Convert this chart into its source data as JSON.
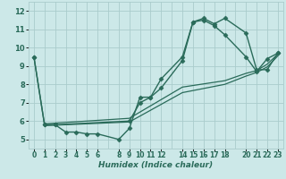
{
  "xlabel": "Humidex (Indice chaleur)",
  "ylabel": "",
  "bg_color": "#cce8e8",
  "grid_color": "#aacccc",
  "line_color": "#2a6b5a",
  "xlim": [
    -0.5,
    23.5
  ],
  "ylim": [
    4.5,
    12.5
  ],
  "xticks": [
    0,
    1,
    2,
    3,
    4,
    5,
    6,
    8,
    9,
    10,
    11,
    12,
    14,
    15,
    16,
    17,
    18,
    20,
    21,
    22,
    23
  ],
  "yticks": [
    5,
    6,
    7,
    8,
    9,
    10,
    11,
    12
  ],
  "series": [
    {
      "x": [
        0,
        1,
        2,
        3,
        4,
        5,
        6,
        8,
        9,
        10,
        11,
        12,
        14,
        15,
        16,
        17,
        18,
        20,
        21,
        22,
        23
      ],
      "y": [
        9.5,
        5.8,
        5.8,
        5.4,
        5.4,
        5.3,
        5.3,
        5.0,
        5.6,
        7.3,
        7.3,
        8.3,
        9.5,
        11.4,
        11.6,
        11.3,
        11.6,
        10.8,
        8.8,
        8.8,
        9.7
      ],
      "marker": "D",
      "markersize": 2.5,
      "lw": 1.0
    },
    {
      "x": [
        0,
        1,
        2,
        9,
        10,
        11,
        12,
        14,
        15,
        16,
        17,
        18,
        20,
        21,
        22,
        23
      ],
      "y": [
        9.5,
        5.8,
        5.8,
        6.0,
        7.0,
        7.3,
        7.8,
        9.3,
        11.4,
        11.5,
        11.2,
        10.7,
        9.5,
        8.7,
        9.4,
        9.7
      ],
      "marker": "D",
      "markersize": 2.5,
      "lw": 1.0
    },
    {
      "x": [
        1,
        9,
        14,
        18,
        20,
        21,
        22,
        23
      ],
      "y": [
        5.85,
        6.15,
        7.85,
        8.2,
        8.6,
        8.75,
        9.1,
        9.65
      ],
      "marker": null,
      "markersize": 0,
      "lw": 0.9
    },
    {
      "x": [
        1,
        9,
        14,
        18,
        20,
        21,
        22,
        23
      ],
      "y": [
        5.75,
        5.95,
        7.55,
        8.0,
        8.45,
        8.65,
        8.95,
        9.55
      ],
      "marker": null,
      "markersize": 0,
      "lw": 0.9
    }
  ]
}
